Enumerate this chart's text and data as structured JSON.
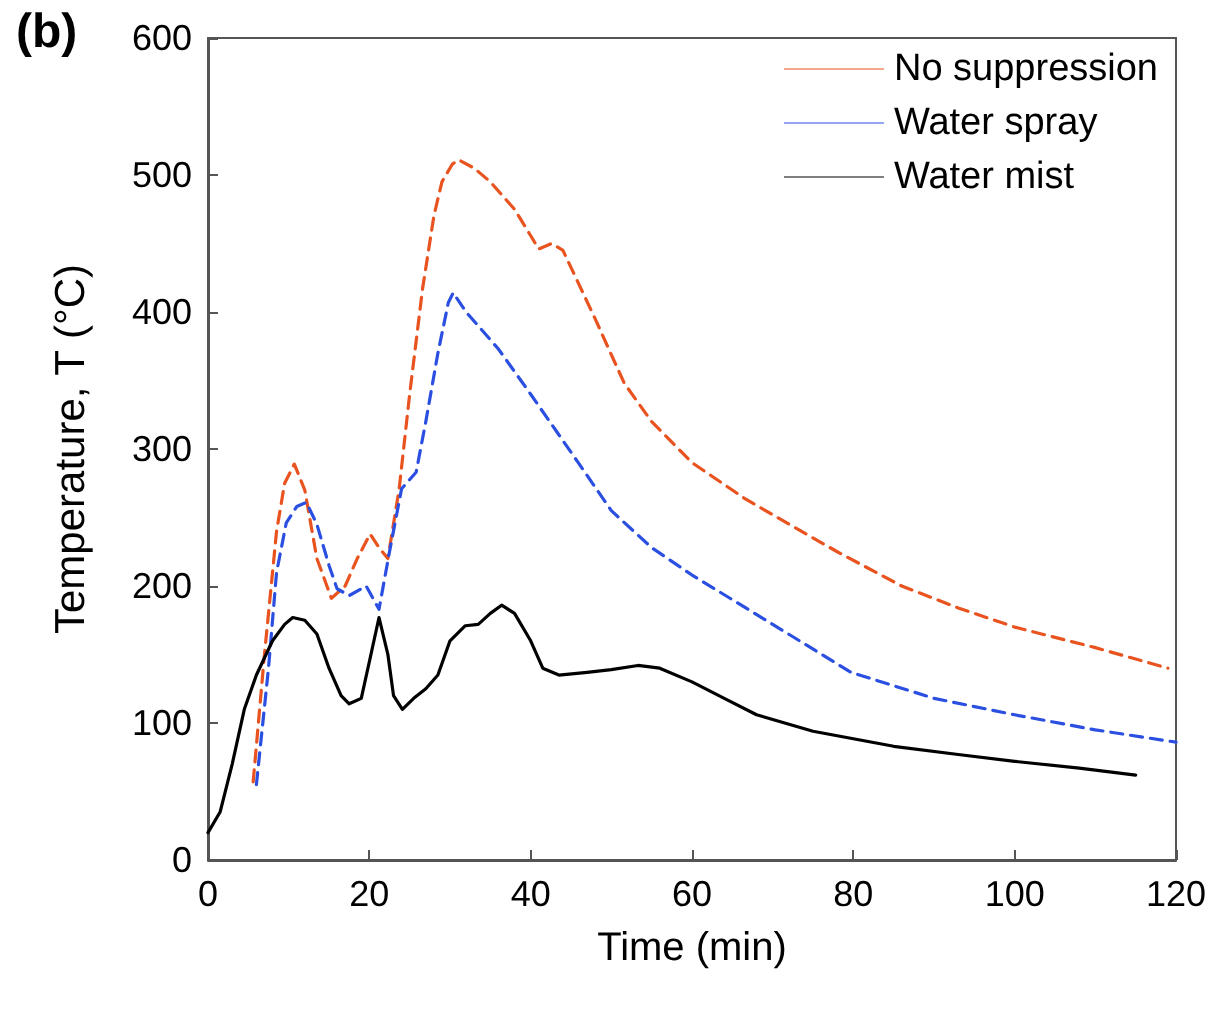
{
  "chart_data": {
    "type": "line",
    "xlabel": "Time (min)",
    "ylabel": "Temperature, T (°C)",
    "annotations": [
      "(b)"
    ],
    "xlim": [
      0,
      120
    ],
    "xticks": [
      0,
      20,
      40,
      60,
      80,
      100,
      120
    ],
    "ylim": [
      0,
      600
    ],
    "yticks": [
      0,
      100,
      200,
      300,
      400,
      500,
      600
    ],
    "grid": false,
    "legend": "top right",
    "marker": "none",
    "series": [
      {
        "name": "No suppression",
        "color": "#e8531f",
        "line_style": "dashed",
        "x": [
          5.6,
          7,
          8.5,
          9.5,
          10.7,
          12,
          13.5,
          15.3,
          17,
          18.5,
          20.1,
          21.2,
          22.3,
          23.7,
          25,
          26.6,
          28,
          29,
          30.3,
          31.1,
          33,
          35,
          38,
          41,
          42.6,
          44,
          46,
          48,
          51.6,
          55,
          60,
          66.5,
          70,
          78,
          86,
          93,
          100,
          110,
          119
        ],
        "values": [
          57,
          150,
          240,
          275,
          289,
          270,
          220,
          191,
          200,
          220,
          238,
          228,
          220,
          271,
          340,
          417,
          470,
          495,
          508,
          511,
          505,
          495,
          475,
          446,
          450,
          445,
          420,
          395,
          348,
          320,
          290,
          264,
          252,
          225,
          200,
          184,
          170,
          155,
          140
        ]
      },
      {
        "name": "Water spray",
        "color": "#2b4fe0",
        "line_style": "dashed",
        "x": [
          6,
          7.5,
          8.5,
          9.7,
          11,
          12.2,
          13.5,
          15,
          16,
          17.5,
          19.6,
          21.2,
          22.5,
          24,
          25.8,
          27,
          28.5,
          29.8,
          30.4,
          32,
          36,
          40,
          45.9,
          50,
          55,
          60,
          70,
          79.7,
          90,
          100,
          110,
          120
        ],
        "values": [
          55,
          140,
          210,
          246,
          258,
          261,
          245,
          215,
          198,
          193,
          200,
          183,
          225,
          271,
          283,
          320,
          370,
          407,
          414,
          400,
          373,
          340,
          290,
          255,
          228,
          208,
          172,
          137,
          118,
          106,
          95,
          86
        ]
      },
      {
        "name": "Water mist",
        "color": "#000000",
        "line_style": "solid",
        "x": [
          0,
          1.5,
          3,
          4.5,
          6,
          8,
          9.5,
          10.5,
          12,
          13.5,
          15,
          16.5,
          17.5,
          19,
          20.2,
          21.2,
          22.3,
          23,
          24.1,
          25.5,
          27,
          28.5,
          30,
          31.9,
          33.5,
          35,
          36.4,
          38,
          40,
          41.5,
          43.5,
          47,
          50,
          53.3,
          56,
          60,
          64,
          68,
          75,
          85,
          93,
          100,
          108,
          115
        ],
        "values": [
          20,
          35,
          70,
          110,
          135,
          160,
          172,
          177,
          175,
          165,
          140,
          120,
          114,
          118,
          150,
          177,
          150,
          120,
          110,
          118,
          125,
          135,
          160,
          171,
          172,
          180,
          186,
          180,
          160,
          140,
          135,
          137,
          139,
          142,
          140,
          130,
          118,
          106,
          94,
          83,
          77,
          72,
          67,
          62
        ]
      }
    ]
  }
}
